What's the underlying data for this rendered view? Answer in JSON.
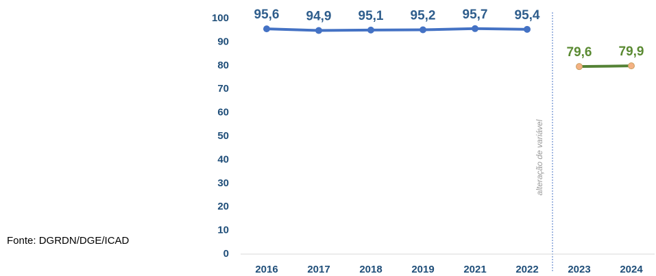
{
  "chart_data": {
    "type": "line",
    "categories": [
      "2016",
      "2017",
      "2018",
      "2019",
      "2021",
      "2022",
      "2023",
      "2024"
    ],
    "series": [
      {
        "color": "#4472c4",
        "marker_color": "#4472c4",
        "label_color": "#2e5d8c",
        "values": [
          95.6,
          94.9,
          95.1,
          95.2,
          95.7,
          95.4,
          null,
          null
        ],
        "value_labels": [
          "95,6",
          "94,9",
          "95,1",
          "95,2",
          "95,7",
          "95,4",
          null,
          null
        ]
      },
      {
        "color": "#548235",
        "marker_color": "#f4b183",
        "label_color": "#5a8a32",
        "values": [
          null,
          null,
          null,
          null,
          null,
          null,
          79.6,
          79.9
        ],
        "value_labels": [
          null,
          null,
          null,
          null,
          null,
          null,
          "79,6",
          "79,9"
        ]
      }
    ],
    "ylim": [
      0,
      100
    ],
    "yticks": [
      0,
      10,
      20,
      30,
      40,
      50,
      60,
      70,
      80,
      90,
      100
    ],
    "annotation": "alteração de variável",
    "source": "Fonte: DGRDN/DGE/ICAD"
  }
}
